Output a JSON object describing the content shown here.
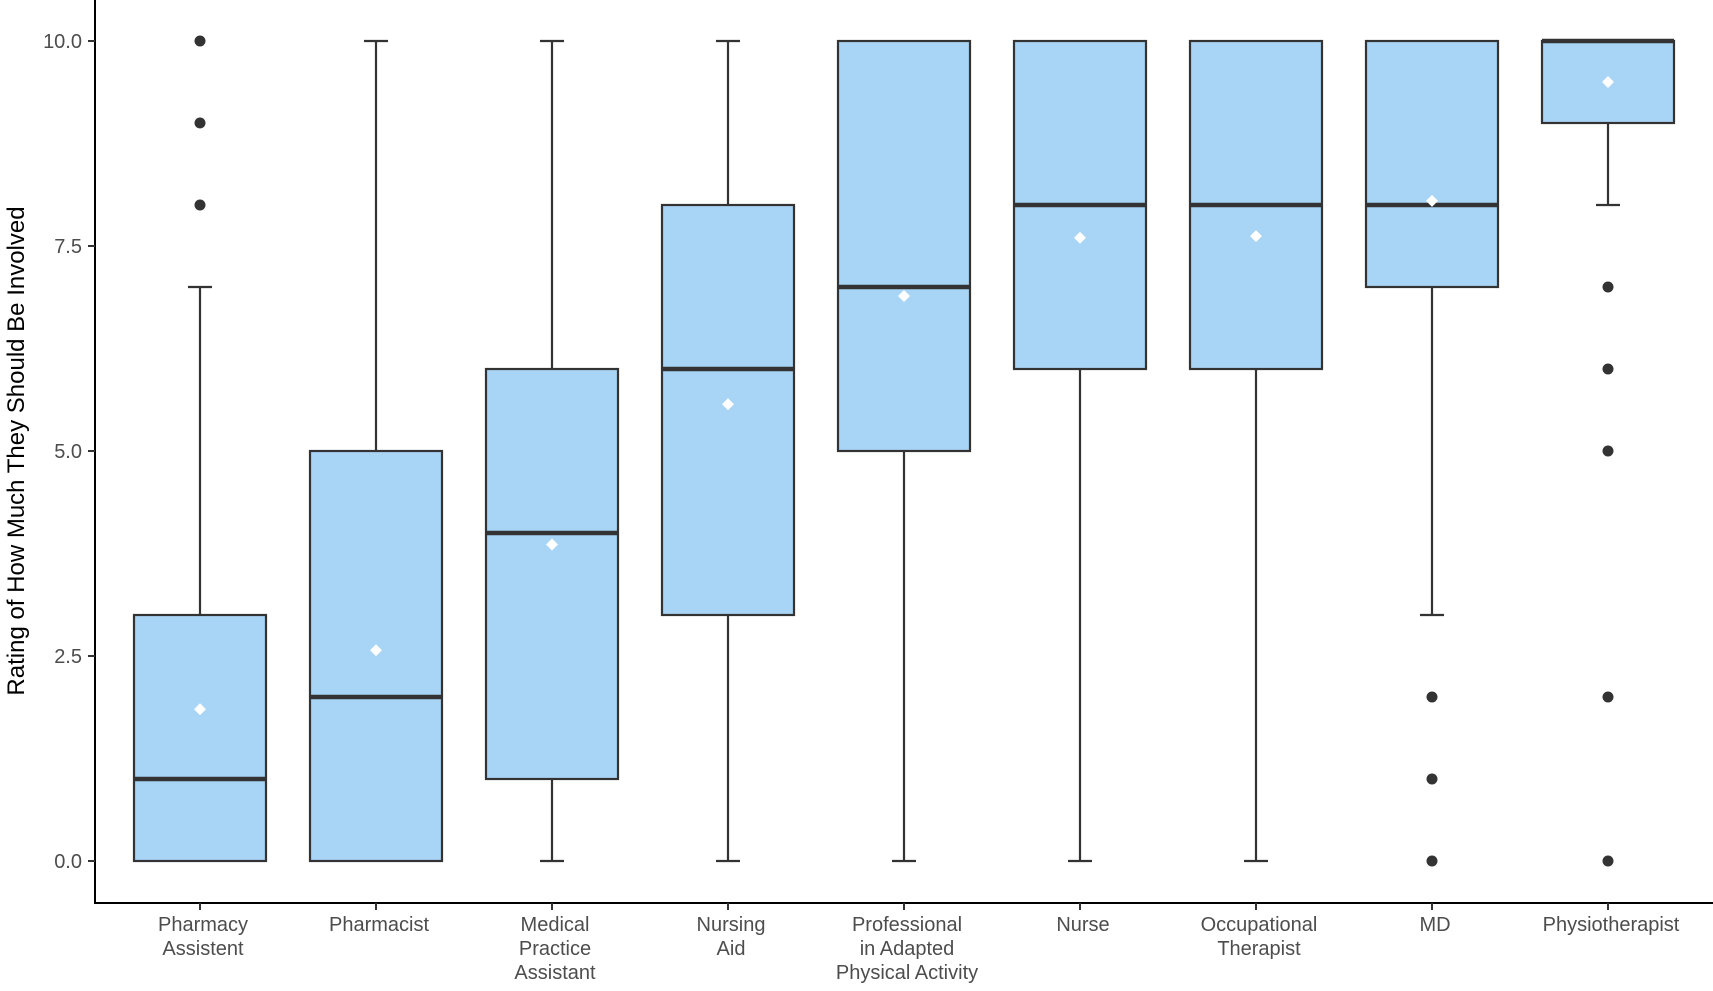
{
  "chart_data": {
    "type": "boxplot",
    "title": "",
    "xlabel": "",
    "ylabel": "Rating of How Much They Should Be Involved",
    "ylim": [
      -0.5,
      10.5
    ],
    "yticks": [
      0.0,
      2.5,
      5.0,
      7.5,
      10.0
    ],
    "ytick_labels": [
      "0.0",
      "2.5",
      "5.0",
      "7.5",
      "10.0"
    ],
    "grid": false,
    "legend": "none",
    "colors": {
      "box_fill": "#a8d4f5",
      "box_stroke": "#333333",
      "mean_marker": "#ffffff",
      "outlier": "#333333"
    },
    "categories": [
      "Pharmacy Assistent",
      "Pharmacist",
      "Medical Practice Assistant",
      "Nursing Aid",
      "Professional in Adapted Physical Activity",
      "Nurse",
      "Occupational Therapist",
      "MD",
      "Physiotherapist"
    ],
    "category_lines": [
      [
        "Pharmacy",
        "Assistent"
      ],
      [
        "Pharmacist"
      ],
      [
        "Medical",
        "Practice",
        "Assistant"
      ],
      [
        "Nursing",
        "Aid"
      ],
      [
        "Professional",
        "in Adapted",
        "Physical Activity"
      ],
      [
        "Nurse"
      ],
      [
        "Occupational",
        "Therapist"
      ],
      [
        "MD"
      ],
      [
        "Physiotherapist"
      ]
    ],
    "boxes": [
      {
        "whisker_low": 0,
        "q1": 0,
        "median": 1,
        "q3": 3,
        "whisker_high": 7,
        "mean": 1.85,
        "outliers": [
          8,
          9,
          10
        ]
      },
      {
        "whisker_low": 0,
        "q1": 0,
        "median": 2,
        "q3": 5,
        "whisker_high": 10,
        "mean": 2.57,
        "outliers": []
      },
      {
        "whisker_low": 0,
        "q1": 1,
        "median": 4,
        "q3": 6,
        "whisker_high": 10,
        "mean": 3.86,
        "outliers": []
      },
      {
        "whisker_low": 0,
        "q1": 3,
        "median": 6,
        "q3": 8,
        "whisker_high": 10,
        "mean": 5.57,
        "outliers": []
      },
      {
        "whisker_low": 0,
        "q1": 5,
        "median": 7,
        "q3": 10,
        "whisker_high": 10,
        "mean": 6.89,
        "outliers": []
      },
      {
        "whisker_low": 0,
        "q1": 6,
        "median": 8,
        "q3": 10,
        "whisker_high": 10,
        "mean": 7.6,
        "outliers": []
      },
      {
        "whisker_low": 0,
        "q1": 6,
        "median": 8,
        "q3": 10,
        "whisker_high": 10,
        "mean": 7.62,
        "outliers": []
      },
      {
        "whisker_low": 3,
        "q1": 7,
        "median": 8,
        "q3": 10,
        "whisker_high": 10,
        "mean": 8.05,
        "outliers": [
          0,
          1,
          2
        ]
      },
      {
        "whisker_low": 8,
        "q1": 9,
        "median": 10,
        "q3": 10,
        "whisker_high": 10,
        "mean": 9.5,
        "outliers": [
          0,
          2,
          5,
          6,
          7
        ]
      }
    ]
  }
}
